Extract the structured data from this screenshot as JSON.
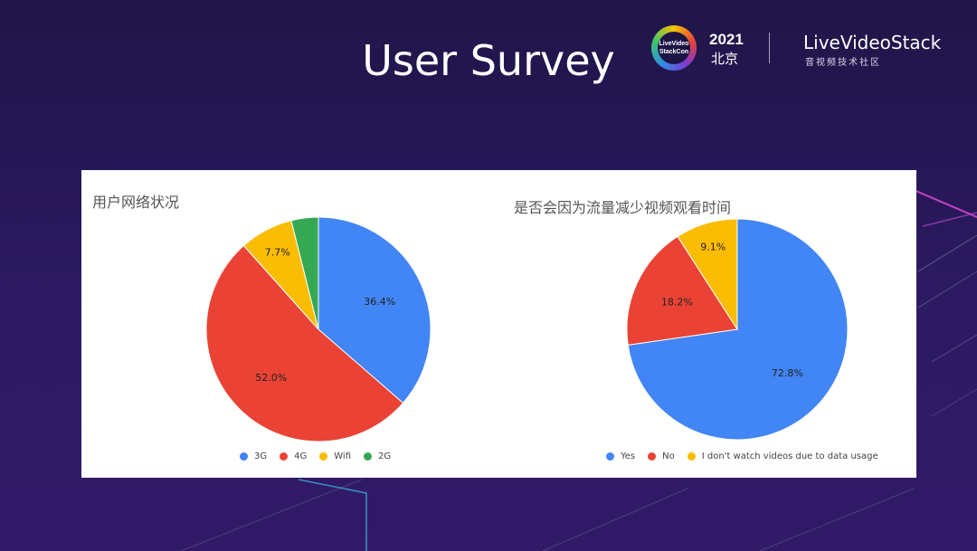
{
  "slide": {
    "title": "User Survey"
  },
  "brand": {
    "badge_text": "LiveVideo StackCon",
    "year": "2021",
    "city": "北京",
    "name": "LiveVideoStack",
    "tagline": "音视频技术社区"
  },
  "colors": {
    "blue": "#4285f4",
    "red": "#ea4335",
    "yellow": "#fbbc04",
    "green": "#34a853"
  },
  "chart_data": [
    {
      "type": "pie",
      "title": "用户网络状况",
      "start": "12 o'clock, clockwise",
      "slices": [
        {
          "label": "3G",
          "value": 36.4,
          "text": "36.4%",
          "color": "#4285f4"
        },
        {
          "label": "4G",
          "value": 52.0,
          "text": "52.0%",
          "color": "#ea4335"
        },
        {
          "label": "Wifi",
          "value": 7.7,
          "text": "7.7%",
          "color": "#fbbc04"
        },
        {
          "label": "2G",
          "value": 3.9,
          "text": "",
          "color": "#34a853"
        }
      ],
      "legend_position": "bottom"
    },
    {
      "type": "pie",
      "title": "是否会因为流量减少视频观看时间",
      "start": "12 o'clock, clockwise",
      "slices": [
        {
          "label": "Yes",
          "value": 72.8,
          "text": "72.8%",
          "color": "#4285f4"
        },
        {
          "label": "No",
          "value": 18.2,
          "text": "18.2%",
          "color": "#ea4335"
        },
        {
          "label": "I don't watch videos due to data usage",
          "value": 9.1,
          "text": "9.1%",
          "color": "#fbbc04"
        }
      ],
      "legend_position": "bottom"
    }
  ]
}
